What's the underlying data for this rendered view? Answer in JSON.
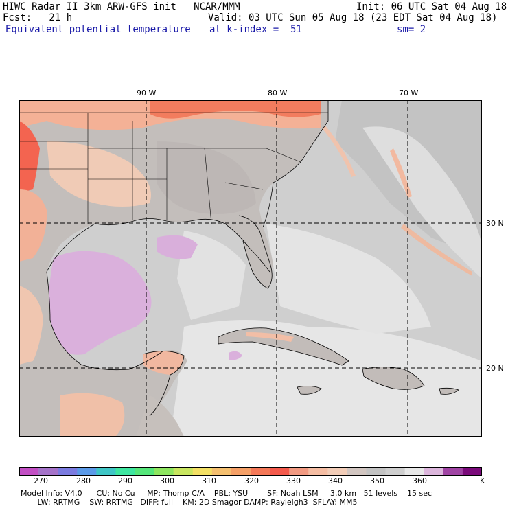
{
  "header": {
    "line1_left": "HIWC Radar II 3km ARW-GFS init   NCAR/MMM",
    "line1_right": "Init: 06 UTC Sat 04 Aug 18",
    "line2_left": "Fcst:   21 h",
    "line2_right": "Valid: 03 UTC Sun 05 Aug 18 (23 EDT Sat 04 Aug 18)",
    "field_name": "Equivalent potential temperature",
    "level_label": "at k-index =  51",
    "smooth_label": "sm= 2"
  },
  "map": {
    "lon_labels": [
      "90 W",
      "80 W",
      "70 W"
    ],
    "lat_labels": [
      "30 N",
      "20 N"
    ]
  },
  "colorbar": {
    "colors": [
      "#c24fc4",
      "#a573c9",
      "#7b7be0",
      "#5b9ae8",
      "#3fc6c6",
      "#3ee6a0",
      "#55e67a",
      "#8ee660",
      "#c9e660",
      "#f3e065",
      "#f5c070",
      "#f5a067",
      "#f47858",
      "#f45a4c",
      "#f29a82",
      "#f5bda3",
      "#f2cdb8",
      "#d2c6c1",
      "#c3c3c3",
      "#cfcfcf",
      "#e8e8e8",
      "#dcb6dc",
      "#a044a4",
      "#7a0a7a"
    ],
    "tick_labels": [
      "270",
      "280",
      "290",
      "300",
      "310",
      "320",
      "330",
      "340",
      "350",
      "360"
    ],
    "units": "K"
  },
  "footer": {
    "line1": "Model Info: V4.0      CU: No Cu     MP: Thomp C/A    PBL: YSU        SF: Noah LSM     3.0 km   51 levels    15 sec",
    "line2": "       LW: RRTMG    SW: RRTMG   DIFF: full    KM: 2D Smagor DAMP: Rayleigh3  SFLAY: MM5"
  }
}
